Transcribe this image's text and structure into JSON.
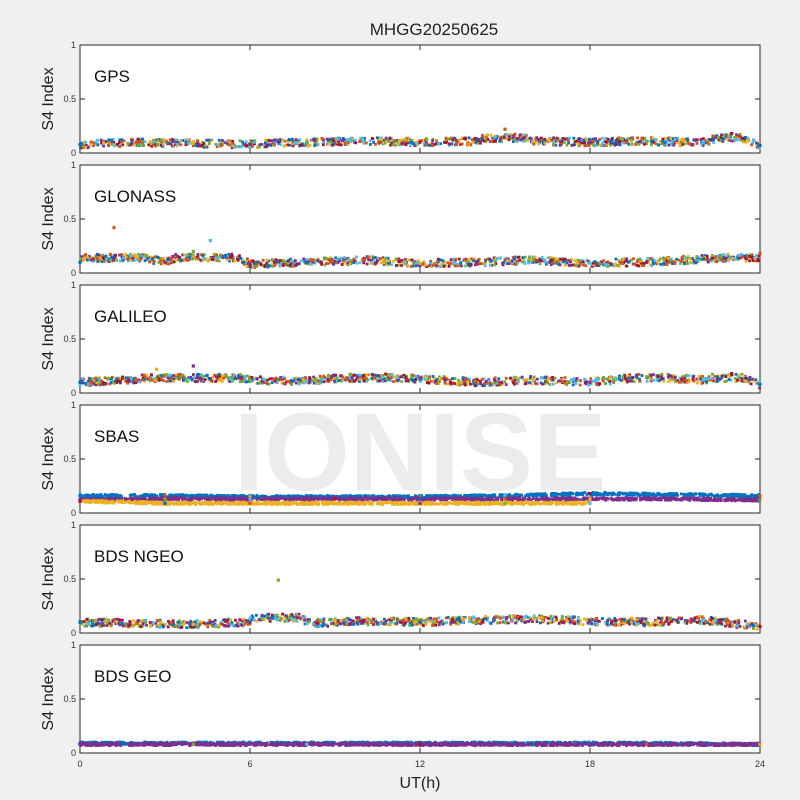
{
  "chart_data": {
    "type": "scatter",
    "title": "MHGG20250625",
    "xlabel": "UT(h)",
    "ylabel": "S4 Index",
    "xlim": [
      0,
      24
    ],
    "ylim": [
      0,
      1
    ],
    "x_ticks": [
      "0",
      "6",
      "12",
      "18",
      "24"
    ],
    "y_ticks": [
      "0",
      "0.5",
      "1"
    ],
    "grid": false,
    "watermark": "IONISE",
    "colors": [
      "#0072bd",
      "#d95319",
      "#edb120",
      "#7e2f8e",
      "#77ac30",
      "#4dbeee",
      "#a2142f"
    ],
    "panels": [
      {
        "name": "GPS",
        "series": [
          {
            "x": [
              0,
              2,
              4,
              6,
              8,
              10,
              12,
              14,
              15,
              16,
              18,
              20,
              22,
              23,
              24
            ],
            "y": [
              0.08,
              0.1,
              0.09,
              0.08,
              0.1,
              0.11,
              0.1,
              0.11,
              0.22,
              0.11,
              0.1,
              0.11,
              0.1,
              0.18,
              0.07
            ]
          }
        ]
      },
      {
        "name": "GLONASS",
        "series": [
          {
            "x": [
              0,
              1.2,
              2,
              3,
              4,
              4.6,
              6,
              8,
              10,
              12,
              14,
              16,
              18,
              20,
              22,
              24
            ],
            "y": [
              0.1,
              0.42,
              0.15,
              0.1,
              0.2,
              0.3,
              0.08,
              0.1,
              0.12,
              0.09,
              0.1,
              0.12,
              0.09,
              0.1,
              0.13,
              0.18
            ]
          }
        ]
      },
      {
        "name": "GALILEO",
        "series": [
          {
            "x": [
              0,
              2,
              2.7,
              4,
              6,
              8,
              10,
              12,
              14,
              16,
              18,
              20,
              22,
              23,
              24
            ],
            "y": [
              0.1,
              0.12,
              0.22,
              0.25,
              0.12,
              0.11,
              0.16,
              0.13,
              0.1,
              0.12,
              0.1,
              0.15,
              0.12,
              0.18,
              0.08
            ]
          }
        ]
      },
      {
        "name": "SBAS",
        "series": [
          {
            "x": [
              0,
              3,
              6,
              9,
              12,
              15,
              18,
              21,
              24
            ],
            "y": [
              0.16,
              0.16,
              0.15,
              0.15,
              0.15,
              0.16,
              0.18,
              0.17,
              0.16
            ]
          },
          {
            "x": [
              0,
              3,
              6,
              9,
              12,
              15,
              18,
              21,
              24
            ],
            "y": [
              0.12,
              0.13,
              0.13,
              0.13,
              0.13,
              0.13,
              0.13,
              0.13,
              0.12
            ]
          },
          {
            "x": [
              0,
              3,
              6,
              9,
              12,
              15,
              18
            ],
            "y": [
              0.11,
              0.09,
              0.09,
              0.09,
              0.09,
              0.09,
              0.09
            ]
          }
        ]
      },
      {
        "name": "BDS NGEO",
        "series": [
          {
            "x": [
              0,
              2,
              4,
              6,
              7,
              8,
              10,
              12,
              14,
              16,
              18,
              20,
              22,
              24
            ],
            "y": [
              0.1,
              0.09,
              0.08,
              0.1,
              0.49,
              0.09,
              0.11,
              0.1,
              0.12,
              0.13,
              0.11,
              0.1,
              0.12,
              0.06
            ]
          }
        ]
      },
      {
        "name": "BDS GEO",
        "series": [
          {
            "x": [
              0,
              4,
              8,
              12,
              16,
              20,
              24
            ],
            "y": [
              0.09,
              0.09,
              0.09,
              0.09,
              0.09,
              0.09,
              0.08
            ]
          },
          {
            "x": [
              0,
              4,
              8,
              12,
              16,
              20,
              24
            ],
            "y": [
              0.08,
              0.08,
              0.08,
              0.08,
              0.08,
              0.08,
              0.08
            ]
          }
        ]
      }
    ]
  }
}
